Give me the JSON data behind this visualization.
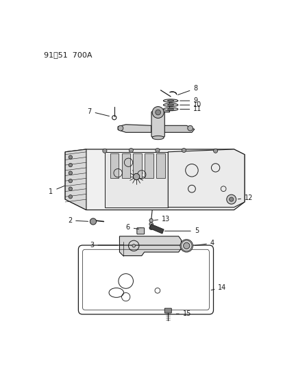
{
  "title_text": "91䩑51  700A",
  "background_color": "#ffffff",
  "line_color": "#1a1a1a",
  "figsize": [
    4.14,
    5.33
  ],
  "dpi": 100,
  "label_fontsize": 7.0
}
